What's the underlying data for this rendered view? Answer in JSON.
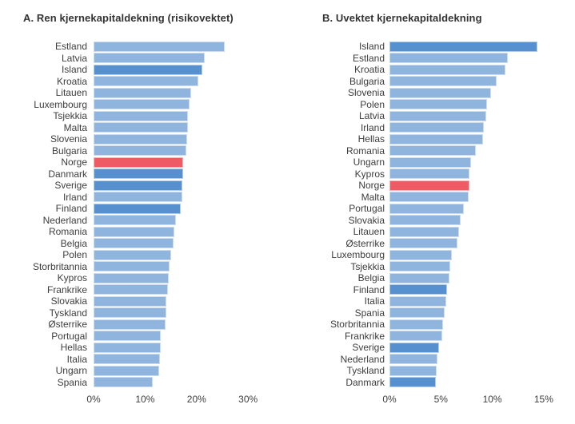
{
  "colors": {
    "bar_light": "#8fb4de",
    "bar_dark": "#5690ce",
    "bar_red": "#ef5b64",
    "text": "#3d3d3d",
    "title_text": "#333333",
    "background": "#ffffff"
  },
  "chart_data": [
    {
      "type": "bar",
      "orientation": "horizontal",
      "title": "A. Ren kjernekapitaldekning (risikovektet)",
      "unit": "%",
      "xlim": [
        0,
        33
      ],
      "grid": false,
      "legend": "none",
      "x_ticks": [
        {
          "value": 0,
          "label": "0%"
        },
        {
          "value": 10,
          "label": "10%"
        },
        {
          "value": 20,
          "label": "20%"
        },
        {
          "value": 30,
          "label": "30%"
        }
      ],
      "bars": [
        {
          "label": "Estland",
          "value": 25.5,
          "style": "light"
        },
        {
          "label": "Latvia",
          "value": 21.6,
          "style": "light"
        },
        {
          "label": "Island",
          "value": 21.1,
          "style": "dark"
        },
        {
          "label": "Kroatia",
          "value": 20.3,
          "style": "light"
        },
        {
          "label": "Litauen",
          "value": 19.0,
          "style": "light"
        },
        {
          "label": "Luxembourg",
          "value": 18.7,
          "style": "light"
        },
        {
          "label": "Tsjekkia",
          "value": 18.4,
          "style": "light"
        },
        {
          "label": "Malta",
          "value": 18.3,
          "style": "light"
        },
        {
          "label": "Slovenia",
          "value": 18.2,
          "style": "light"
        },
        {
          "label": "Bulgaria",
          "value": 18.0,
          "style": "light"
        },
        {
          "label": "Norge",
          "value": 17.4,
          "style": "red"
        },
        {
          "label": "Danmark",
          "value": 17.4,
          "style": "dark"
        },
        {
          "label": "Sverige",
          "value": 17.2,
          "style": "dark"
        },
        {
          "label": "Irland",
          "value": 17.2,
          "style": "light"
        },
        {
          "label": "Finland",
          "value": 17.0,
          "style": "dark"
        },
        {
          "label": "Nederland",
          "value": 16.0,
          "style": "light"
        },
        {
          "label": "Romania",
          "value": 15.7,
          "style": "light"
        },
        {
          "label": "Belgia",
          "value": 15.6,
          "style": "light"
        },
        {
          "label": "Polen",
          "value": 15.0,
          "style": "light"
        },
        {
          "label": "Storbritannia",
          "value": 14.7,
          "style": "light"
        },
        {
          "label": "Kypros",
          "value": 14.6,
          "style": "light"
        },
        {
          "label": "Frankrike",
          "value": 14.4,
          "style": "light"
        },
        {
          "label": "Slovakia",
          "value": 14.2,
          "style": "light"
        },
        {
          "label": "Tyskland",
          "value": 14.1,
          "style": "light"
        },
        {
          "label": "Østerrike",
          "value": 14.0,
          "style": "light"
        },
        {
          "label": "Portugal",
          "value": 13.1,
          "style": "light"
        },
        {
          "label": "Hellas",
          "value": 13.0,
          "style": "light"
        },
        {
          "label": "Italia",
          "value": 12.9,
          "style": "light"
        },
        {
          "label": "Ungarn",
          "value": 12.8,
          "style": "light"
        },
        {
          "label": "Spania",
          "value": 11.5,
          "style": "light"
        }
      ]
    },
    {
      "type": "bar",
      "orientation": "horizontal",
      "title": "B. Uvektet kjernekapitaldekning",
      "unit": "%",
      "xlim": [
        0,
        16.5
      ],
      "grid": false,
      "legend": "none",
      "x_ticks": [
        {
          "value": 0,
          "label": "0%"
        },
        {
          "value": 5,
          "label": "5%"
        },
        {
          "value": 10,
          "label": "10%"
        },
        {
          "value": 15,
          "label": "15%"
        }
      ],
      "bars": [
        {
          "label": "Island",
          "value": 14.4,
          "style": "dark"
        },
        {
          "label": "Estland",
          "value": 11.5,
          "style": "light"
        },
        {
          "label": "Kroatia",
          "value": 11.3,
          "style": "light"
        },
        {
          "label": "Bulgaria",
          "value": 10.4,
          "style": "light"
        },
        {
          "label": "Slovenia",
          "value": 9.9,
          "style": "light"
        },
        {
          "label": "Polen",
          "value": 9.5,
          "style": "light"
        },
        {
          "label": "Latvia",
          "value": 9.4,
          "style": "light"
        },
        {
          "label": "Irland",
          "value": 9.2,
          "style": "light"
        },
        {
          "label": "Hellas",
          "value": 9.1,
          "style": "light"
        },
        {
          "label": "Romania",
          "value": 8.4,
          "style": "light"
        },
        {
          "label": "Ungarn",
          "value": 7.9,
          "style": "light"
        },
        {
          "label": "Kypros",
          "value": 7.8,
          "style": "light"
        },
        {
          "label": "Norge",
          "value": 7.8,
          "style": "red"
        },
        {
          "label": "Malta",
          "value": 7.7,
          "style": "light"
        },
        {
          "label": "Portugal",
          "value": 7.2,
          "style": "light"
        },
        {
          "label": "Slovakia",
          "value": 6.9,
          "style": "light"
        },
        {
          "label": "Litauen",
          "value": 6.8,
          "style": "light"
        },
        {
          "label": "Østerrike",
          "value": 6.6,
          "style": "light"
        },
        {
          "label": "Luxembourg",
          "value": 6.1,
          "style": "light"
        },
        {
          "label": "Tsjekkia",
          "value": 5.9,
          "style": "light"
        },
        {
          "label": "Belgia",
          "value": 5.8,
          "style": "light"
        },
        {
          "label": "Finland",
          "value": 5.6,
          "style": "dark"
        },
        {
          "label": "Italia",
          "value": 5.5,
          "style": "light"
        },
        {
          "label": "Spania",
          "value": 5.4,
          "style": "light"
        },
        {
          "label": "Storbritannia",
          "value": 5.2,
          "style": "light"
        },
        {
          "label": "Frankrike",
          "value": 5.1,
          "style": "light"
        },
        {
          "label": "Sverige",
          "value": 4.8,
          "style": "dark"
        },
        {
          "label": "Nederland",
          "value": 4.7,
          "style": "light"
        },
        {
          "label": "Tyskland",
          "value": 4.6,
          "style": "light"
        },
        {
          "label": "Danmark",
          "value": 4.5,
          "style": "dark"
        }
      ]
    }
  ]
}
